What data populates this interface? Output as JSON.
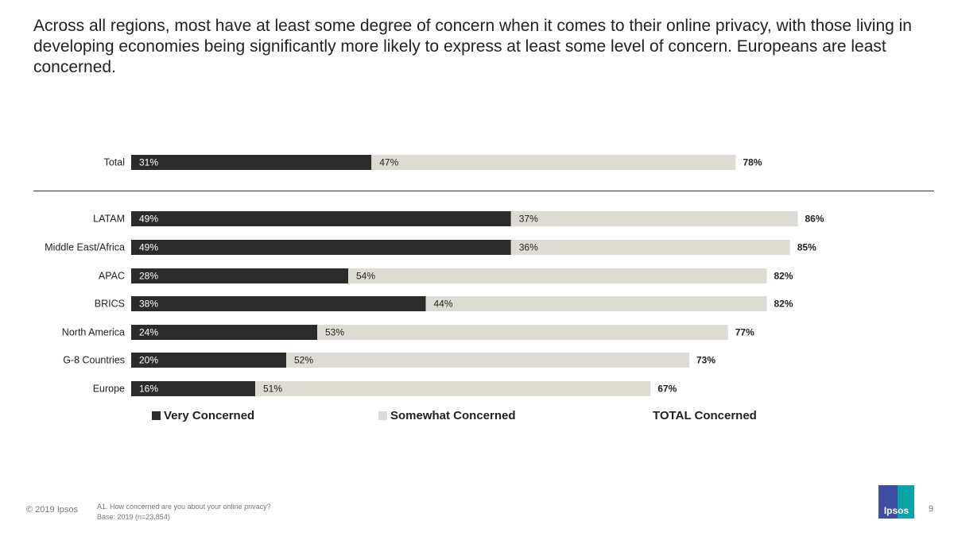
{
  "headline": "Across all regions, most have at least some degree of concern when it comes to their online privacy, with those living in developing economies being significantly more likely to express at least some level of concern. Europeans are least concerned.",
  "colors": {
    "very": "#2b2b2b",
    "somewhat": "#dedcd2",
    "text": "#222222"
  },
  "chart_data": {
    "type": "bar",
    "orientation": "horizontal",
    "stacked": true,
    "categories": [
      "Total",
      "LATAM",
      "Middle East/Africa",
      "APAC",
      "BRICS",
      "North America",
      "G-8 Countries",
      "Europe"
    ],
    "series": [
      {
        "name": "Very Concerned",
        "values": [
          31,
          49,
          49,
          28,
          38,
          24,
          20,
          16
        ],
        "labels": [
          "31%",
          "49%",
          "49%",
          "28%",
          "38%",
          "24%",
          "20%",
          "16%"
        ]
      },
      {
        "name": "Somewhat Concerned",
        "values": [
          47,
          37,
          36,
          54,
          44,
          53,
          52,
          51
        ],
        "labels": [
          "47%",
          "37%",
          "36%",
          "54%",
          "44%",
          "53%",
          "52%",
          "51%"
        ]
      }
    ],
    "totals": {
      "name": "TOTAL Concerned",
      "values": [
        78,
        86,
        85,
        82,
        82,
        77,
        73,
        67
      ],
      "labels": [
        "78%",
        "86%",
        "85%",
        "82%",
        "82%",
        "77%",
        "73%",
        "67%"
      ]
    },
    "xlim": [
      0,
      100
    ],
    "legend": [
      "Very Concerned",
      "Somewhat Concerned",
      "TOTAL Concerned"
    ],
    "legend_position": "bottom"
  },
  "legend": {
    "very": "Very Concerned",
    "somewhat": "Somewhat Concerned",
    "total": "TOTAL Concerned"
  },
  "footer": {
    "copyright": "© 2019 Ipsos",
    "question": "A1. How concerned are you about your online privacy?",
    "base": "Base: 2019 (n=23,854)",
    "page_number": "9",
    "logo_text": "Ipsos"
  }
}
